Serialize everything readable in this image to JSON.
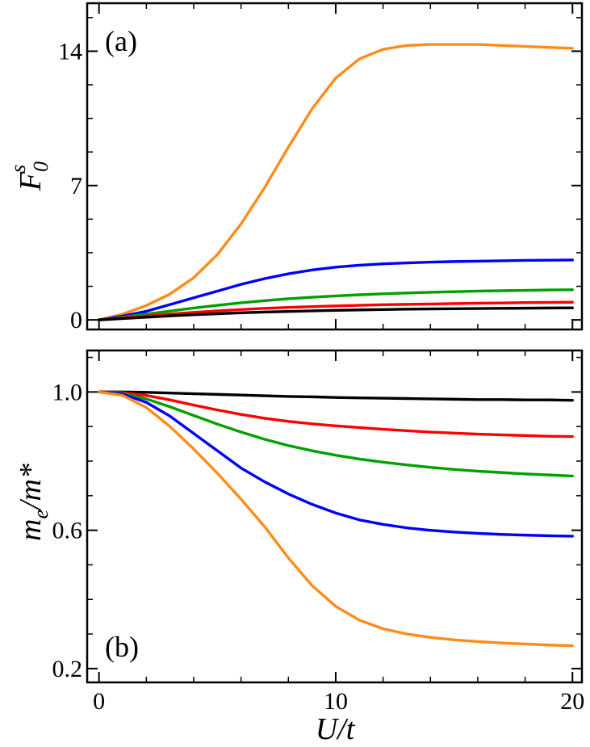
{
  "chart_data": [
    {
      "panel_label": "(a)",
      "type": "line",
      "ylabel": {
        "main": "F",
        "sub": "0",
        "sup": "s"
      },
      "xlim": [
        -0.5,
        20.4
      ],
      "ylim": [
        -0.5,
        16.5
      ],
      "x_ticks": [
        0,
        10,
        20
      ],
      "x_tick_labels": [
        "",
        "",
        ""
      ],
      "y_ticks": [
        0,
        7,
        14
      ],
      "y_tick_labels": [
        "0",
        "7",
        "14"
      ],
      "series": [
        {
          "color": "#ff8c1a",
          "x": [
            0,
            1,
            2,
            3,
            4,
            5,
            6,
            7,
            8,
            9,
            10,
            11,
            12,
            13,
            14,
            15,
            16,
            17,
            18,
            19,
            20
          ],
          "y": [
            0,
            0.3,
            0.75,
            1.35,
            2.2,
            3.4,
            5.0,
            6.9,
            9.0,
            11.0,
            12.6,
            13.6,
            14.1,
            14.3,
            14.35,
            14.35,
            14.35,
            14.3,
            14.25,
            14.2,
            14.15
          ]
        },
        {
          "color": "#0000ff",
          "x": [
            0,
            1,
            2,
            3,
            4,
            5,
            6,
            7,
            8,
            9,
            10,
            11,
            12,
            13,
            14,
            15,
            16,
            17,
            18,
            19,
            20
          ],
          "y": [
            0,
            0.2,
            0.45,
            0.8,
            1.15,
            1.5,
            1.85,
            2.15,
            2.4,
            2.6,
            2.75,
            2.85,
            2.92,
            2.97,
            3.01,
            3.04,
            3.06,
            3.08,
            3.1,
            3.11,
            3.12
          ]
        },
        {
          "color": "#00a000",
          "x": [
            0,
            1,
            2,
            3,
            4,
            5,
            6,
            7,
            8,
            9,
            10,
            11,
            12,
            13,
            14,
            15,
            16,
            17,
            18,
            19,
            20
          ],
          "y": [
            0,
            0.14,
            0.3,
            0.46,
            0.62,
            0.76,
            0.89,
            1.0,
            1.1,
            1.18,
            1.25,
            1.31,
            1.36,
            1.4,
            1.44,
            1.47,
            1.5,
            1.52,
            1.54,
            1.56,
            1.57
          ]
        },
        {
          "color": "#ff0000",
          "x": [
            0,
            1,
            2,
            3,
            4,
            5,
            6,
            7,
            8,
            9,
            10,
            11,
            12,
            13,
            14,
            15,
            16,
            17,
            18,
            19,
            20
          ],
          "y": [
            0,
            0.1,
            0.2,
            0.3,
            0.39,
            0.47,
            0.54,
            0.6,
            0.65,
            0.69,
            0.73,
            0.76,
            0.79,
            0.81,
            0.83,
            0.85,
            0.87,
            0.88,
            0.9,
            0.91,
            0.92
          ]
        },
        {
          "color": "#000000",
          "x": [
            0,
            1,
            2,
            3,
            4,
            5,
            6,
            7,
            8,
            9,
            10,
            11,
            12,
            13,
            14,
            15,
            16,
            17,
            18,
            19,
            20
          ],
          "y": [
            0,
            0.07,
            0.14,
            0.21,
            0.27,
            0.32,
            0.37,
            0.41,
            0.44,
            0.47,
            0.5,
            0.52,
            0.54,
            0.56,
            0.57,
            0.58,
            0.59,
            0.6,
            0.61,
            0.62,
            0.63
          ]
        }
      ]
    },
    {
      "panel_label": "(b)",
      "type": "line",
      "ylabel": {
        "main": "m",
        "sub": "e",
        "rest": "/m*"
      },
      "xlabel": "U/t",
      "xlim": [
        -0.5,
        20.4
      ],
      "ylim": [
        0.16,
        1.12
      ],
      "x_ticks": [
        0,
        10,
        20
      ],
      "x_tick_labels": [
        "0",
        "10",
        "20"
      ],
      "y_ticks": [
        0.2,
        0.6,
        1.0
      ],
      "y_tick_labels": [
        "0.2",
        "0.6",
        "1.0"
      ],
      "series": [
        {
          "color": "#000000",
          "x": [
            0,
            1,
            2,
            3,
            4,
            5,
            6,
            7,
            8,
            9,
            10,
            11,
            12,
            13,
            14,
            15,
            16,
            17,
            18,
            19,
            20
          ],
          "y": [
            1.0,
            1.0,
            0.999,
            0.997,
            0.995,
            0.993,
            0.991,
            0.989,
            0.987,
            0.986,
            0.984,
            0.983,
            0.982,
            0.981,
            0.98,
            0.979,
            0.978,
            0.978,
            0.977,
            0.977,
            0.976
          ]
        },
        {
          "color": "#ff0000",
          "x": [
            0,
            1,
            2,
            3,
            4,
            5,
            6,
            7,
            8,
            9,
            10,
            11,
            12,
            13,
            14,
            15,
            16,
            17,
            18,
            19,
            20
          ],
          "y": [
            1.0,
            0.998,
            0.99,
            0.977,
            0.962,
            0.948,
            0.935,
            0.924,
            0.915,
            0.908,
            0.902,
            0.897,
            0.892,
            0.888,
            0.884,
            0.881,
            0.878,
            0.876,
            0.874,
            0.872,
            0.871
          ]
        },
        {
          "color": "#00a000",
          "x": [
            0,
            1,
            2,
            3,
            4,
            5,
            6,
            7,
            8,
            9,
            10,
            11,
            12,
            13,
            14,
            15,
            16,
            17,
            18,
            19,
            20
          ],
          "y": [
            1.0,
            0.996,
            0.98,
            0.957,
            0.932,
            0.907,
            0.884,
            0.863,
            0.845,
            0.83,
            0.817,
            0.806,
            0.797,
            0.789,
            0.782,
            0.776,
            0.771,
            0.767,
            0.763,
            0.76,
            0.757
          ]
        },
        {
          "color": "#0000ff",
          "x": [
            0,
            1,
            2,
            3,
            4,
            5,
            6,
            7,
            8,
            9,
            10,
            11,
            12,
            13,
            14,
            15,
            16,
            17,
            18,
            19,
            20
          ],
          "y": [
            1.0,
            0.994,
            0.97,
            0.93,
            0.88,
            0.83,
            0.78,
            0.74,
            0.705,
            0.675,
            0.65,
            0.63,
            0.617,
            0.607,
            0.6,
            0.595,
            0.591,
            0.588,
            0.586,
            0.584,
            0.583
          ]
        },
        {
          "color": "#ff8c1a",
          "x": [
            0,
            1,
            2,
            3,
            4,
            5,
            6,
            7,
            8,
            9,
            10,
            11,
            12,
            13,
            14,
            15,
            16,
            17,
            18,
            19,
            20
          ],
          "y": [
            1.0,
            0.99,
            0.955,
            0.9,
            0.835,
            0.765,
            0.69,
            0.61,
            0.52,
            0.44,
            0.38,
            0.34,
            0.315,
            0.3,
            0.29,
            0.283,
            0.278,
            0.274,
            0.271,
            0.268,
            0.266
          ]
        }
      ]
    }
  ]
}
